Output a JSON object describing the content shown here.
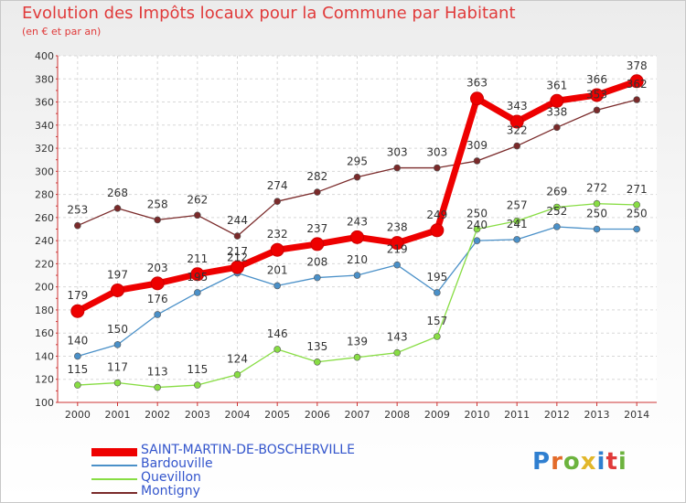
{
  "title": "Evolution des Impôts locaux pour la Commune par Habitant",
  "subtitle": "(en € et par an)",
  "logo": {
    "letters": [
      {
        "ch": "P",
        "color": "#2f7fd0"
      },
      {
        "ch": "r",
        "color": "#e36b2a"
      },
      {
        "ch": "o",
        "color": "#6cb33e"
      },
      {
        "ch": "x",
        "color": "#e2b72b"
      },
      {
        "ch": "i",
        "color": "#2f7fd0"
      },
      {
        "ch": "t",
        "color": "#e03a3a"
      },
      {
        "ch": "i",
        "color": "#6cb33e"
      }
    ]
  },
  "chart_data": {
    "type": "line",
    "title": "Evolution des Impôts locaux pour la Commune par Habitant",
    "subtitle": "(en € et par an)",
    "x": [
      "2000",
      "2001",
      "2002",
      "2003",
      "2004",
      "2005",
      "2006",
      "2007",
      "2008",
      "2009",
      "2010",
      "2011",
      "2012",
      "2013",
      "2014"
    ],
    "ylim": [
      100,
      400
    ],
    "yticks": [
      100,
      120,
      140,
      160,
      180,
      200,
      220,
      240,
      260,
      280,
      300,
      320,
      340,
      360,
      380,
      400
    ],
    "grid": true,
    "legend_position": "bottom-left",
    "series": [
      {
        "name": "SAINT-MARTIN-DE-BOSCHERVILLE",
        "color": "#ee0000",
        "emphasis": true,
        "values": [
          179,
          197,
          203,
          211,
          217,
          232,
          237,
          243,
          238,
          249,
          363,
          343,
          361,
          366,
          378
        ]
      },
      {
        "name": "Bardouville",
        "color": "#4a90c8",
        "values": [
          140,
          150,
          176,
          195,
          212,
          201,
          208,
          210,
          219,
          195,
          240,
          241,
          252,
          250,
          250
        ]
      },
      {
        "name": "Quevillon",
        "color": "#88dd44",
        "values": [
          115,
          117,
          113,
          115,
          124,
          146,
          135,
          139,
          143,
          157,
          250,
          257,
          269,
          272,
          271
        ]
      },
      {
        "name": "Montigny",
        "color": "#7a2a2a",
        "values": [
          253,
          268,
          258,
          262,
          244,
          274,
          282,
          295,
          303,
          303,
          309,
          322,
          338,
          353,
          362
        ]
      }
    ]
  }
}
